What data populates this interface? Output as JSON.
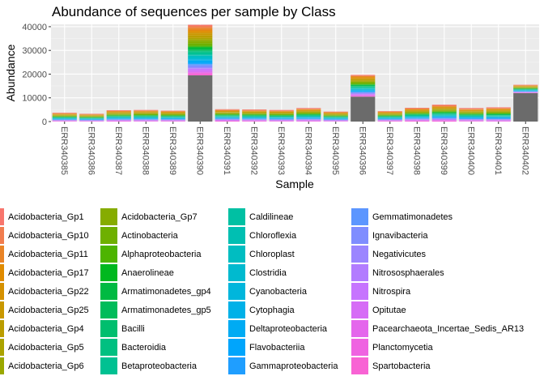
{
  "chart_data": {
    "type": "bar",
    "stacked": true,
    "title": "Abundance of sequences per sample by Class",
    "xlabel": "Sample",
    "ylabel": "Abundance",
    "ylim": [
      0,
      41000
    ],
    "yticks": [
      0,
      10000,
      20000,
      30000,
      40000
    ],
    "ytick_labels": [
      "0",
      "10000",
      "20000",
      "30000",
      "40000"
    ],
    "grid": true,
    "categories": [
      "ERR340385",
      "ERR340386",
      "ERR340387",
      "ERR340388",
      "ERR340389",
      "ERR340390",
      "ERR340391",
      "ERR340392",
      "ERR340393",
      "ERR340394",
      "ERR340395",
      "ERR340396",
      "ERR340397",
      "ERR340398",
      "ERR340399",
      "ERR340400",
      "ERR340401",
      "ERR340402"
    ],
    "totals": [
      3700,
      3300,
      4800,
      4900,
      4600,
      40800,
      5200,
      5100,
      4900,
      5700,
      4200,
      19700,
      4400,
      5800,
      7100,
      5700,
      6000,
      15500
    ],
    "unclassified_grey": [
      0,
      0,
      0,
      0,
      0,
      19500,
      0,
      0,
      0,
      0,
      0,
      10500,
      0,
      0,
      0,
      0,
      0,
      12000
    ],
    "grey_color": "#6b6b6b",
    "series": [
      {
        "name": "Acidobacteria_Gp1",
        "color": "#F8766D"
      },
      {
        "name": "Acidobacteria_Gp10",
        "color": "#F17D4F"
      },
      {
        "name": "Acidobacteria_Gp11",
        "color": "#E98427"
      },
      {
        "name": "Acidobacteria_Gp17",
        "color": "#E08B00"
      },
      {
        "name": "Acidobacteria_Gp22",
        "color": "#D59100"
      },
      {
        "name": "Acidobacteria_Gp25",
        "color": "#C99800"
      },
      {
        "name": "Acidobacteria_Gp4",
        "color": "#BB9D00"
      },
      {
        "name": "Acidobacteria_Gp5",
        "color": "#ABA300"
      },
      {
        "name": "Acidobacteria_Gp6",
        "color": "#9AA800"
      },
      {
        "name": "Acidobacteria_Gp7",
        "color": "#86AC00"
      },
      {
        "name": "Actinobacteria",
        "color": "#6EB000"
      },
      {
        "name": "Alphaproteobacteria",
        "color": "#4DB400"
      },
      {
        "name": "Anaerolineae",
        "color": "#00B81F"
      },
      {
        "name": "Armatimonadetes_gp4",
        "color": "#00BA42"
      },
      {
        "name": "Armatimonadetes_gp5",
        "color": "#00BC5A"
      },
      {
        "name": "Bacilli",
        "color": "#00BE6E"
      },
      {
        "name": "Bacteroidia",
        "color": "#00C081"
      },
      {
        "name": "Betaproteobacteria",
        "color": "#00C192"
      },
      {
        "name": "Caldilineae",
        "color": "#00C0A3"
      },
      {
        "name": "Chloroflexia",
        "color": "#00BFB2"
      },
      {
        "name": "Chloroplast",
        "color": "#00BDC1"
      },
      {
        "name": "Clostridia",
        "color": "#00BACF"
      },
      {
        "name": "Cyanobacteria",
        "color": "#00B6DC"
      },
      {
        "name": "Cytophagia",
        "color": "#00B1E8"
      },
      {
        "name": "Deltaproteobacteria",
        "color": "#00ABF3"
      },
      {
        "name": "Flavobacteriia",
        "color": "#00A5FC"
      },
      {
        "name": "Gammaproteobacteria",
        "color": "#1F9EFF"
      },
      {
        "name": "Gemmatimonadetes",
        "color": "#5C96FF"
      },
      {
        "name": "Ignavibacteria",
        "color": "#7F8DFF"
      },
      {
        "name": "Negativicutes",
        "color": "#9B85FF"
      },
      {
        "name": "Nitrososphaerales",
        "color": "#B27CFF"
      },
      {
        "name": "Nitrospira",
        "color": "#C674FE"
      },
      {
        "name": "Opitutae",
        "color": "#D66CF6"
      },
      {
        "name": "Pacearchaeota_Incertae_Sedis_AR13",
        "color": "#E466EC"
      },
      {
        "name": "Planctomycetia",
        "color": "#EF63E1"
      },
      {
        "name": "Spartobacteria",
        "color": "#F863D4"
      }
    ]
  }
}
